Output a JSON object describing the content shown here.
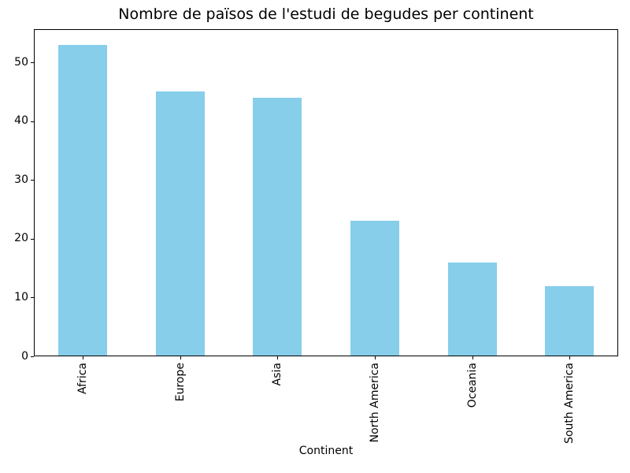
{
  "chart_data": {
    "type": "bar",
    "title": "Nombre de països de l'estudi de begudes per continent",
    "xlabel": "Continent",
    "ylabel": "",
    "categories": [
      "Africa",
      "Europe",
      "Asia",
      "North America",
      "Oceania",
      "South America"
    ],
    "values": [
      53,
      45,
      44,
      23,
      16,
      12
    ],
    "yticks": [
      0,
      10,
      20,
      30,
      40,
      50
    ],
    "ylim": [
      0,
      55.65
    ],
    "bar_color": "#87CEEB",
    "text_color": "#000000",
    "grid": false,
    "legend_position": "none",
    "x_tick_label_rotation_deg": 90
  }
}
